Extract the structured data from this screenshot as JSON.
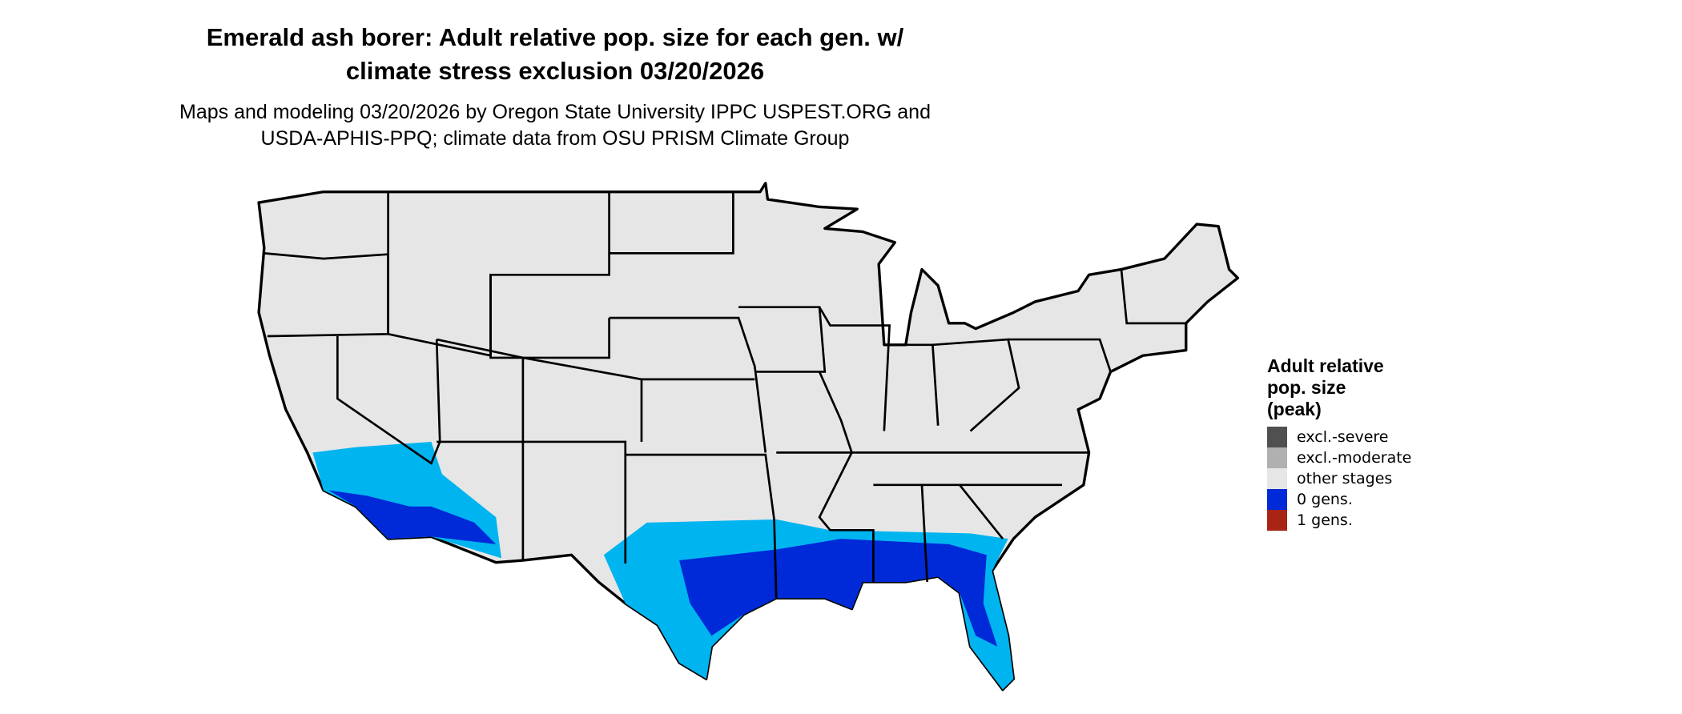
{
  "title_lines": [
    "Emerald ash borer: Adult relative pop. size for each gen. w/",
    "climate stress exclusion 03/20/2026"
  ],
  "subtitle_lines": [
    "Maps and modeling 03/20/2026 by Oregon State University IPPC USPEST.ORG and",
    "USDA-APHIS-PPQ; climate data from OSU PRISM Climate Group"
  ],
  "legend": {
    "title_lines": [
      "Adult relative",
      "pop. size",
      "(peak)"
    ],
    "items": [
      {
        "label": "excl.-severe",
        "color": "#505050"
      },
      {
        "label": "excl.-moderate",
        "color": "#b0b0b0"
      },
      {
        "label": "other stages",
        "color": "#e6e6e6"
      },
      {
        "label": "0 gens.",
        "color": "#0029d8"
      },
      {
        "label": "1 gens.",
        "color": "#a82415"
      }
    ]
  },
  "map_colors": {
    "land": "#e6e6e6",
    "border": "#000000",
    "zero_gens_light": "#00b4f0",
    "zero_gens_dark": "#0029d8"
  }
}
